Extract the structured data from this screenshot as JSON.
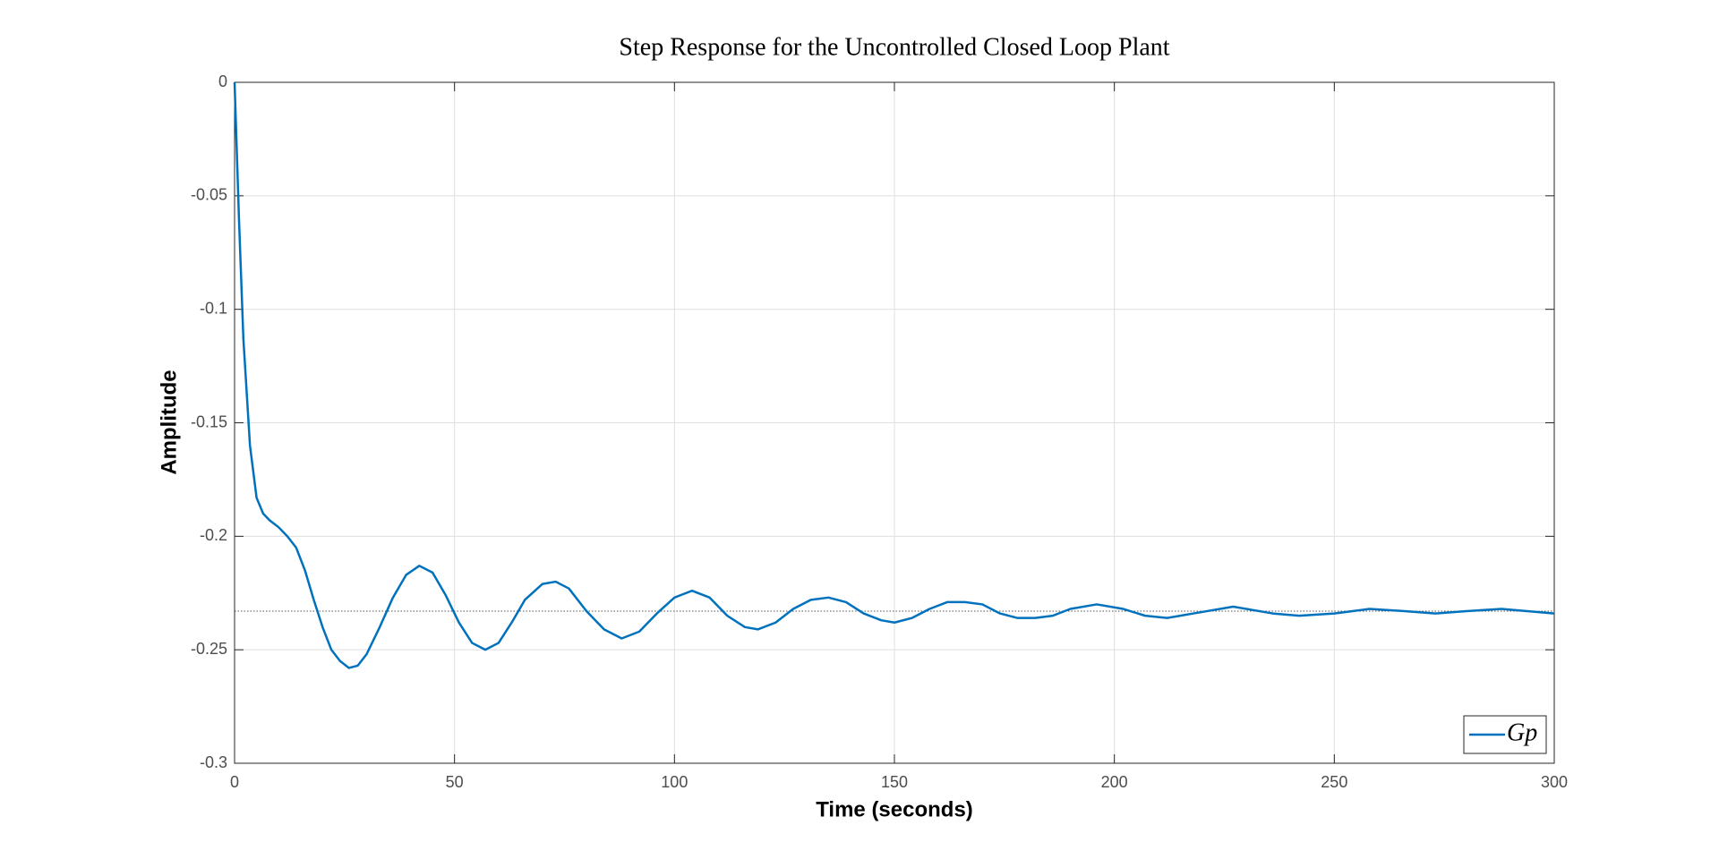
{
  "chart_data": {
    "type": "line",
    "title": "Step Response for the Uncontrolled Closed Loop Plant",
    "x_label": "Time (seconds)",
    "y_label": "Amplitude",
    "x": [
      0,
      1,
      2,
      3.5,
      5,
      6.5,
      8,
      10,
      12,
      14,
      16,
      18,
      20,
      22,
      24,
      26,
      28,
      30,
      33,
      36,
      39,
      42,
      45,
      48,
      51,
      54,
      57,
      60,
      63,
      66,
      70,
      73,
      76,
      80,
      84,
      88,
      92,
      96,
      100,
      104,
      108,
      112,
      116,
      119,
      123,
      127,
      131,
      135,
      139,
      143,
      147,
      150,
      154,
      158,
      162,
      166,
      170,
      174,
      178,
      182,
      186,
      190,
      196,
      202,
      207,
      212,
      218,
      227,
      236,
      242,
      250,
      258,
      266,
      273,
      280,
      288,
      300
    ],
    "series": [
      {
        "name": "Gp",
        "color": "#0072bd",
        "values": [
          0,
          -0.06,
          -0.113,
          -0.16,
          -0.183,
          -0.19,
          -0.193,
          -0.196,
          -0.2,
          -0.205,
          -0.215,
          -0.228,
          -0.24,
          -0.25,
          -0.255,
          -0.258,
          -0.257,
          -0.252,
          -0.24,
          -0.227,
          -0.217,
          -0.213,
          -0.216,
          -0.226,
          -0.238,
          -0.247,
          -0.25,
          -0.247,
          -0.238,
          -0.228,
          -0.221,
          -0.22,
          -0.223,
          -0.233,
          -0.241,
          -0.245,
          -0.242,
          -0.234,
          -0.227,
          -0.224,
          -0.227,
          -0.235,
          -0.24,
          -0.241,
          -0.238,
          -0.232,
          -0.228,
          -0.227,
          -0.229,
          -0.234,
          -0.237,
          -0.238,
          -0.236,
          -0.232,
          -0.229,
          -0.229,
          -0.23,
          -0.234,
          -0.236,
          -0.236,
          -0.235,
          -0.232,
          -0.23,
          -0.232,
          -0.235,
          -0.236,
          -0.234,
          -0.231,
          -0.234,
          -0.235,
          -0.234,
          -0.232,
          -0.233,
          -0.234,
          -0.233,
          -0.232,
          -0.234
        ]
      }
    ],
    "steady_state": -0.233,
    "xlim": [
      0,
      300
    ],
    "xticks": [
      0,
      50,
      100,
      150,
      200,
      250,
      300
    ],
    "ylim": [
      -0.3,
      0
    ],
    "yticks": [
      -0.3,
      -0.25,
      -0.2,
      -0.15,
      -0.1,
      -0.05,
      0
    ],
    "grid": true,
    "legend": "lower right"
  }
}
